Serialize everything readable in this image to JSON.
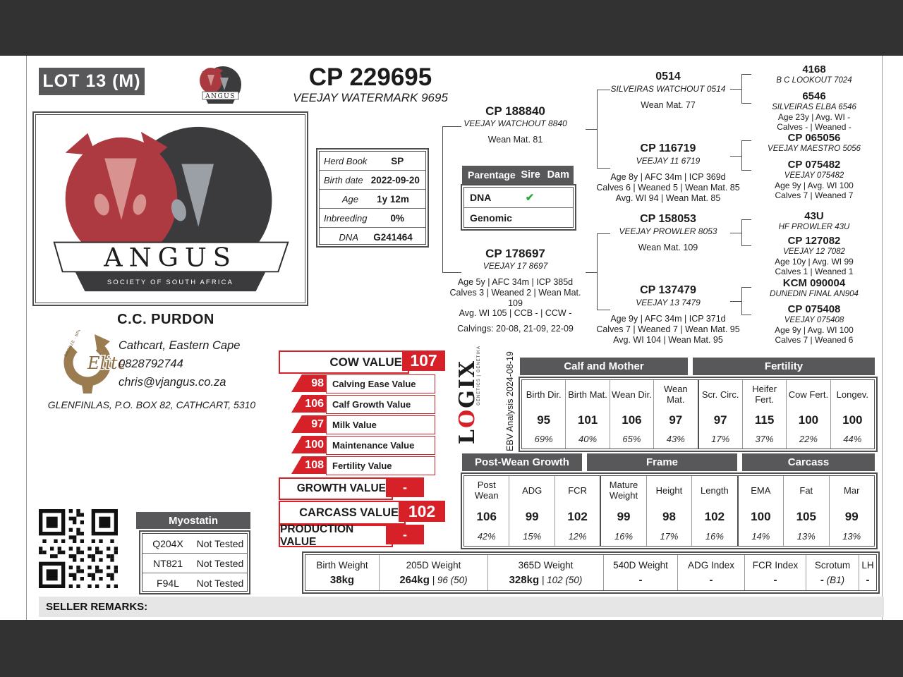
{
  "lot": {
    "label": "LOT 13 (M)"
  },
  "title": {
    "reg": "CP 229695",
    "name": "VEEJAY WATERMARK 9695"
  },
  "logo": {
    "name": "ANGUS",
    "sub": "SOCIETY OF SOUTH AFRICA"
  },
  "info": {
    "rows": [
      {
        "label": "Herd Book",
        "value": "SP"
      },
      {
        "label": "Birth date",
        "value": "2022-09-20"
      },
      {
        "label": "Age",
        "value": "1y 12m"
      },
      {
        "label": "Inbreeding",
        "value": "0%"
      },
      {
        "label": "DNA",
        "value": "G241464"
      }
    ]
  },
  "parentage": {
    "headers": {
      "col1": "Parentage",
      "col2": "Sire",
      "col3": "Dam"
    },
    "rows": [
      {
        "label": "DNA",
        "sire": "✔",
        "dam": ""
      },
      {
        "label": "Genomic",
        "sire": "",
        "dam": ""
      }
    ]
  },
  "pedigree": {
    "sire": {
      "reg": "CP 188840",
      "name": "VEEJAY WATCHOUT 8840",
      "lines": [
        "Wean Mat. 81"
      ]
    },
    "dam": {
      "reg": "CP 178697",
      "name": "VEEJAY 17 8697",
      "lines": [
        "Age 5y | AFC 34m | ICP 385d",
        "Calves 3 | Weaned 2 | Wean Mat. 109",
        "Avg. WI 105 | CCB - | CCW -"
      ],
      "calvings": "Calvings: 20-08, 21-09, 22-09"
    },
    "gen2": [
      {
        "reg": "0514",
        "name": "SILVEIRAS WATCHOUT 0514",
        "lines": [
          "Wean Mat. 77"
        ]
      },
      {
        "reg": "CP 116719",
        "name": "VEEJAY 11 6719",
        "lines": [
          "Age 8y | AFC 34m | ICP 369d",
          "Calves 6 | Weaned 5 | Wean Mat. 85",
          "Avg. WI 94 | Wean Mat. 85"
        ]
      },
      {
        "reg": "CP 158053",
        "name": "VEEJAY PROWLER 8053",
        "lines": [
          "Wean Mat. 109"
        ]
      },
      {
        "reg": "CP 137479",
        "name": "VEEJAY 13 7479",
        "lines": [
          "Age 9y | AFC 34m | ICP 371d",
          "Calves 7 | Weaned 7 | Wean Mat. 95",
          "Avg. WI 104 | Wean Mat. 95"
        ]
      }
    ],
    "gen3": [
      {
        "reg": "4168",
        "name": "B C LOOKOUT 7024",
        "lines": []
      },
      {
        "reg": "6546",
        "name": "SILVEIRAS ELBA 6546",
        "lines": [
          "Age 23y | Avg. WI -",
          "Calves - | Weaned -"
        ]
      },
      {
        "reg": "CP 065056",
        "name": "VEEJAY MAESTRO 5056",
        "lines": []
      },
      {
        "reg": "CP 075482",
        "name": "VEEJAY 075482",
        "lines": [
          "Age 9y | Avg. WI 100",
          "Calves 7 | Weaned 7"
        ]
      },
      {
        "reg": "43U",
        "name": "HF PROWLER 43U",
        "lines": []
      },
      {
        "reg": "CP 127082",
        "name": "VEEJAY 12 7082",
        "lines": [
          "Age 10y | Avg. WI 99",
          "Calves 1 | Weaned 1"
        ]
      },
      {
        "reg": "KCM 090004",
        "name": "DUNEDIN FINAL AN904",
        "lines": []
      },
      {
        "reg": "CP 075408",
        "name": "VEEJAY 075408",
        "lines": [
          "Age 9y | Avg. WI 100",
          "Calves 7 | Weaned 6"
        ]
      }
    ]
  },
  "owner": {
    "name": "C.C. PURDON",
    "city": "Cathcart, Eastern Cape",
    "phone": "0828792744",
    "email": "chris@vjangus.co.za",
    "address": "GLENFINLAS, P.O. BOX 82, CATHCART, 5310",
    "badge": {
      "script": "Elite",
      "arc_text": "BRONZE · BRONS"
    }
  },
  "values": {
    "cow": {
      "label": "COW VALUE",
      "value": "107"
    },
    "subs": [
      {
        "value": "98",
        "label": "Calving Ease Value"
      },
      {
        "value": "106",
        "label": "Calf Growth Value"
      },
      {
        "value": "97",
        "label": "Milk Value"
      },
      {
        "value": "100",
        "label": "Maintenance Value"
      },
      {
        "value": "108",
        "label": "Fertility Value"
      }
    ],
    "growth": {
      "label": "GROWTH VALUE",
      "value": "-"
    },
    "carcass": {
      "label": "CARCASS VALUE",
      "value": "102"
    },
    "production": {
      "label": "PRODUCTION VALUE",
      "value": "-"
    }
  },
  "logix": {
    "l": "L",
    "o": "O",
    "gix": "GIX",
    "tagline": "GENETICS | GENETIKA",
    "analysis": "EBV Analysis 2024-08-19"
  },
  "ebv": {
    "group1": {
      "a": "Calf and Mother",
      "b": "Fertility"
    },
    "table1": [
      {
        "label": "Birth Dir.",
        "value": "95",
        "acc": "69%"
      },
      {
        "label": "Birth Mat.",
        "value": "101",
        "acc": "40%"
      },
      {
        "label": "Wean Dir.",
        "value": "106",
        "acc": "65%"
      },
      {
        "label": "Wean Mat.",
        "value": "97",
        "acc": "43%"
      },
      {
        "label": "Scr. Circ.",
        "value": "97",
        "acc": "17%"
      },
      {
        "label": "Heifer Fert.",
        "value": "115",
        "acc": "37%"
      },
      {
        "label": "Cow Fert.",
        "value": "100",
        "acc": "22%"
      },
      {
        "label": "Longev.",
        "value": "100",
        "acc": "44%"
      }
    ],
    "group2": {
      "a": "Post-Wean Growth",
      "b": "Frame",
      "c": "Carcass"
    },
    "table2": [
      {
        "label": "Post Wean",
        "value": "106",
        "acc": "42%"
      },
      {
        "label": "ADG",
        "value": "99",
        "acc": "15%"
      },
      {
        "label": "FCR",
        "value": "102",
        "acc": "12%"
      },
      {
        "label": "Mature Weight",
        "value": "99",
        "acc": "16%"
      },
      {
        "label": "Height",
        "value": "98",
        "acc": "17%"
      },
      {
        "label": "Length",
        "value": "102",
        "acc": "16%"
      },
      {
        "label": "EMA",
        "value": "100",
        "acc": "14%"
      },
      {
        "label": "Fat",
        "value": "105",
        "acc": "13%"
      },
      {
        "label": "Mar",
        "value": "99",
        "acc": "13%"
      }
    ]
  },
  "weights": {
    "cols": [
      {
        "label": "Birth Weight",
        "main": "38kg",
        "sub": ""
      },
      {
        "label": "205D Weight",
        "main": "264kg",
        "sub": " | 96 (50)"
      },
      {
        "label": "365D Weight",
        "main": "328kg",
        "sub": " | 102 (50)"
      },
      {
        "label": "540D Weight",
        "main": "-",
        "sub": ""
      },
      {
        "label": "ADG Index",
        "main": "-",
        "sub": ""
      },
      {
        "label": "FCR Index",
        "main": "-",
        "sub": ""
      },
      {
        "label": "Scrotum",
        "main": "-",
        "sub": " (B1)"
      },
      {
        "label": "LH",
        "main": "-",
        "sub": ""
      }
    ]
  },
  "myostatin": {
    "title": "Myostatin",
    "rows": [
      {
        "gene": "Q204X",
        "status": "Not Tested"
      },
      {
        "gene": "NT821",
        "status": "Not Tested"
      },
      {
        "gene": "F94L",
        "status": "Not Tested"
      }
    ]
  },
  "remarks": {
    "label": "SELLER REMARKS:"
  },
  "colors": {
    "accent_red": "#d62128",
    "header_gray": "#58585a",
    "band_gray": "#323232",
    "check_green": "#2fa83c",
    "badge_gold": "#9b7c50"
  }
}
